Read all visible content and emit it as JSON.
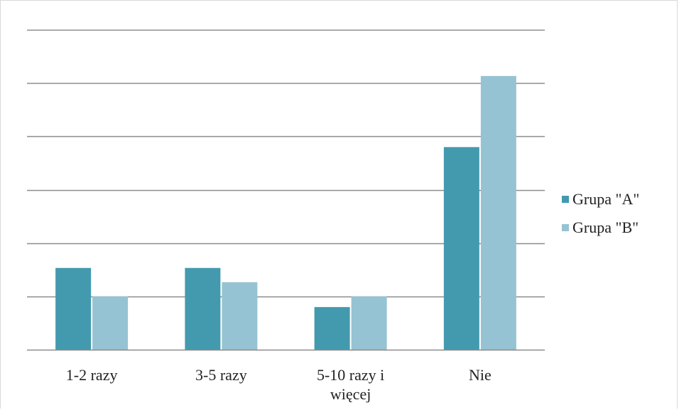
{
  "chart_data": {
    "type": "bar",
    "categories": [
      "1-2 razy",
      "3-5 razy",
      "5-10 razy i więcej",
      "Nie"
    ],
    "category_lines": [
      [
        "1-2 razy"
      ],
      [
        "3-5 razy"
      ],
      [
        "5-10 razy i",
        "więcej"
      ],
      [
        "Nie"
      ]
    ],
    "series": [
      {
        "name": "Grupa \"A\"",
        "values": [
          23,
          23,
          12,
          57
        ],
        "color": "#439aae"
      },
      {
        "name": "Grupa \"B\"",
        "values": [
          15,
          19,
          15,
          77
        ],
        "color": "#96c3d4"
      }
    ],
    "ylim": [
      0,
      90
    ],
    "ytick_step": 15,
    "grid": true,
    "legend_position": "right",
    "title": "",
    "xlabel": "",
    "ylabel": ""
  }
}
